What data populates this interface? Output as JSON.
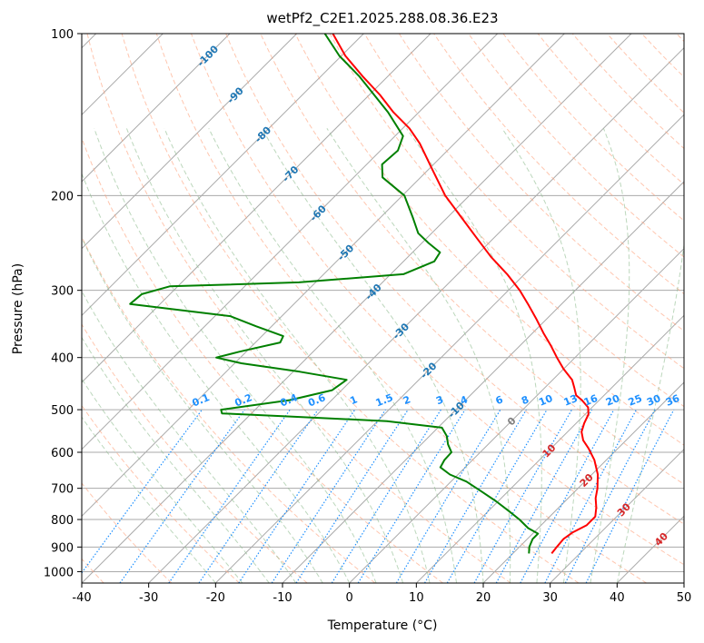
{
  "chart_data": {
    "type": "line",
    "chart_kind": "skew-T log-p diagram",
    "title": "wetPf2_C2E1.2025.288.08.36.E23",
    "xlabel": "Temperature (°C)",
    "ylabel": "Pressure (hPa)",
    "xlim": [
      -40,
      50
    ],
    "ylim": [
      1050,
      100
    ],
    "y_scale": "log",
    "grid": true,
    "x_ticks": [
      "-40",
      "-30",
      "-20",
      "-10",
      "0",
      "10",
      "20",
      "30",
      "40",
      "50"
    ],
    "y_ticks": [
      "100",
      "200",
      "300",
      "400",
      "500",
      "600",
      "700",
      "800",
      "900",
      "1000"
    ],
    "series": [
      {
        "key": "temperature",
        "color": "#ff0000",
        "points": [
          {
            "p": 925,
            "t": 25.8
          },
          {
            "p": 900,
            "t": 25.6
          },
          {
            "p": 870,
            "t": 25.4
          },
          {
            "p": 845,
            "t": 25.8
          },
          {
            "p": 820,
            "t": 26.8
          },
          {
            "p": 790,
            "t": 26.8
          },
          {
            "p": 760,
            "t": 25.6
          },
          {
            "p": 730,
            "t": 24.1
          },
          {
            "p": 700,
            "t": 22.9
          },
          {
            "p": 660,
            "t": 20.9
          },
          {
            "p": 620,
            "t": 18.2
          },
          {
            "p": 590,
            "t": 15.6
          },
          {
            "p": 570,
            "t": 13.6
          },
          {
            "p": 550,
            "t": 12.1
          },
          {
            "p": 530,
            "t": 11.2
          },
          {
            "p": 510,
            "t": 10.5
          },
          {
            "p": 495,
            "t": 9.4
          },
          {
            "p": 480,
            "t": 7.4
          },
          {
            "p": 470,
            "t": 5.8
          },
          {
            "p": 455,
            "t": 4.4
          },
          {
            "p": 440,
            "t": 2.9
          },
          {
            "p": 420,
            "t": 0.0
          },
          {
            "p": 400,
            "t": -2.7
          },
          {
            "p": 380,
            "t": -5.4
          },
          {
            "p": 360,
            "t": -8.4
          },
          {
            "p": 340,
            "t": -11.4
          },
          {
            "p": 320,
            "t": -14.7
          },
          {
            "p": 300,
            "t": -18.3
          },
          {
            "p": 280,
            "t": -22.6
          },
          {
            "p": 260,
            "t": -27.6
          },
          {
            "p": 240,
            "t": -32.5
          },
          {
            "p": 220,
            "t": -37.8
          },
          {
            "p": 200,
            "t": -43.6
          },
          {
            "p": 180,
            "t": -49.1
          },
          {
            "p": 160,
            "t": -55.2
          },
          {
            "p": 150,
            "t": -59.0
          },
          {
            "p": 140,
            "t": -63.8
          },
          {
            "p": 130,
            "t": -68.4
          },
          {
            "p": 120,
            "t": -73.8
          },
          {
            "p": 110,
            "t": -79.4
          },
          {
            "p": 100,
            "t": -84.6
          }
        ]
      },
      {
        "key": "dewpoint",
        "color": "#008000",
        "points": [
          {
            "p": 925,
            "t": 22.4
          },
          {
            "p": 900,
            "t": 21.5
          },
          {
            "p": 870,
            "t": 20.8
          },
          {
            "p": 850,
            "t": 20.8
          },
          {
            "p": 830,
            "t": 18.5
          },
          {
            "p": 800,
            "t": 15.9
          },
          {
            "p": 770,
            "t": 12.9
          },
          {
            "p": 740,
            "t": 9.7
          },
          {
            "p": 710,
            "t": 6.1
          },
          {
            "p": 680,
            "t": 2.3
          },
          {
            "p": 660,
            "t": -1.2
          },
          {
            "p": 640,
            "t": -3.7
          },
          {
            "p": 620,
            "t": -4.2
          },
          {
            "p": 600,
            "t": -4.3
          },
          {
            "p": 580,
            "t": -6.0
          },
          {
            "p": 560,
            "t": -7.4
          },
          {
            "p": 540,
            "t": -9.4
          },
          {
            "p": 525,
            "t": -18.6
          },
          {
            "p": 515,
            "t": -33.4
          },
          {
            "p": 508,
            "t": -44.4
          },
          {
            "p": 500,
            "t": -45.1
          },
          {
            "p": 480,
            "t": -36.3
          },
          {
            "p": 460,
            "t": -31.4
          },
          {
            "p": 440,
            "t": -30.8
          },
          {
            "p": 425,
            "t": -39.0
          },
          {
            "p": 410,
            "t": -49.0
          },
          {
            "p": 400,
            "t": -53.6
          },
          {
            "p": 390,
            "t": -51.0
          },
          {
            "p": 375,
            "t": -46.3
          },
          {
            "p": 365,
            "t": -46.8
          },
          {
            "p": 350,
            "t": -52.3
          },
          {
            "p": 335,
            "t": -57.7
          },
          {
            "p": 318,
            "t": -74.5
          },
          {
            "p": 305,
            "t": -74.2
          },
          {
            "p": 295,
            "t": -71.2
          },
          {
            "p": 290,
            "t": -52.5
          },
          {
            "p": 280,
            "t": -38.1
          },
          {
            "p": 265,
            "t": -35.4
          },
          {
            "p": 255,
            "t": -35.9
          },
          {
            "p": 245,
            "t": -39.0
          },
          {
            "p": 235,
            "t": -42.0
          },
          {
            "p": 220,
            "t": -45.1
          },
          {
            "p": 200,
            "t": -49.7
          },
          {
            "p": 185,
            "t": -55.7
          },
          {
            "p": 175,
            "t": -57.7
          },
          {
            "p": 165,
            "t": -57.4
          },
          {
            "p": 155,
            "t": -58.8
          },
          {
            "p": 140,
            "t": -64.6
          },
          {
            "p": 120,
            "t": -74.3
          },
          {
            "p": 110,
            "t": -80.3
          },
          {
            "p": 100,
            "t": -85.8
          }
        ]
      }
    ],
    "reference_lines": {
      "isotherms": {
        "color": "#aaaaaa",
        "step_c": 10
      },
      "isobars": {
        "color": "#aaaaaa"
      },
      "dry_adiabats": {
        "color": "#ffa07a",
        "labels": [
          "-100",
          "-90",
          "-80",
          "-70",
          "-60",
          "-50",
          "-40",
          "-30",
          "-20",
          "-10",
          "0",
          "10",
          "20",
          "30",
          "40"
        ]
      },
      "moist_adiabats": {
        "color": "#8fbc8f"
      },
      "mixing_ratio": {
        "color": "#1e90ff",
        "labels": [
          "0.1",
          "0.2",
          "0.4",
          "0.6",
          "1",
          "1.5",
          "2",
          "3",
          "4",
          "6",
          "8",
          "10",
          "13",
          "16",
          "20",
          "25",
          "30",
          "36"
        ]
      }
    }
  }
}
